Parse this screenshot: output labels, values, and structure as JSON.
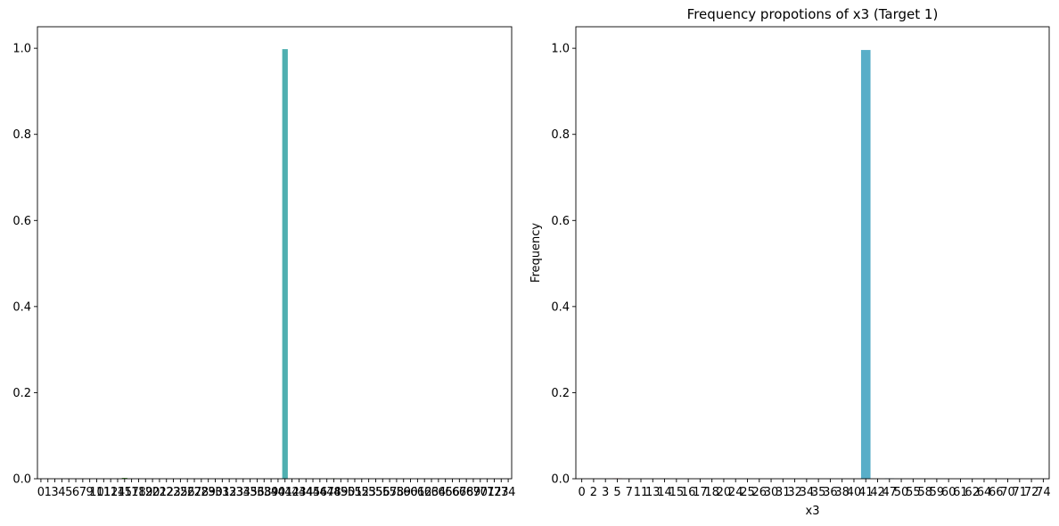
{
  "chart_data": [
    {
      "type": "bar",
      "title": "",
      "xlabel": "",
      "ylabel": "",
      "ylim": [
        0,
        1.05
      ],
      "yticks": [
        0.0,
        0.2,
        0.4,
        0.6,
        0.8,
        1.0
      ],
      "ytick_labels": [
        "0.0",
        "0.2",
        "0.4",
        "0.6",
        "0.8",
        "1.0"
      ],
      "categories": [
        "0",
        "1",
        "3",
        "4",
        "5",
        "6",
        "7",
        "9",
        "10",
        "11",
        "12",
        "14",
        "15",
        "17",
        "18",
        "19",
        "20",
        "21",
        "22",
        "23",
        "25",
        "26",
        "27",
        "28",
        "29",
        "30",
        "31",
        "32",
        "33",
        "34",
        "35",
        "36",
        "38",
        "39",
        "40",
        "41",
        "42",
        "43",
        "44",
        "45",
        "46",
        "47",
        "48",
        "49",
        "50",
        "51",
        "52",
        "53",
        "55",
        "56",
        "57",
        "58",
        "59",
        "60",
        "61",
        "62",
        "63",
        "64",
        "65",
        "66",
        "67",
        "68",
        "69",
        "70",
        "71",
        "72",
        "73",
        "74"
      ],
      "values": [
        0,
        0,
        0,
        0,
        0,
        0,
        0,
        0,
        0,
        0,
        0,
        0,
        0.002,
        0,
        0,
        0,
        0,
        0,
        0,
        0,
        0,
        0,
        0,
        0,
        0,
        0,
        0,
        0,
        0,
        0,
        0,
        0,
        0,
        0,
        0,
        0.998,
        0,
        0,
        0,
        0,
        0,
        0,
        0.001,
        0,
        0,
        0,
        0,
        0,
        0,
        0,
        0,
        0,
        0,
        0,
        0,
        0,
        0,
        0,
        0,
        0,
        0,
        0,
        0,
        0,
        0,
        0,
        0,
        0
      ],
      "grid": false,
      "colors": [
        "#3b75af",
        "#ef8636",
        "#519e3e",
        "#c53a32",
        "#8d69b8",
        "#84584e",
        "#d57dbe",
        "#7f7f7f",
        "#bcbc45",
        "#58bbcc",
        "#3b75af",
        "#ef8636",
        "#519e3e",
        "#c53a32",
        "#8d69b8",
        "#84584e",
        "#d57dbe",
        "#7f7f7f",
        "#bcbc45",
        "#58bbcc",
        "#3b75af",
        "#ef8636",
        "#519e3e",
        "#c53a32",
        "#8d69b8",
        "#84584e",
        "#d57dbe",
        "#7f7f7f",
        "#bcbc45",
        "#58bbcc",
        "#3b75af",
        "#ef8636",
        "#519e3e",
        "#c53a32",
        "#8d69b8",
        "#4fafb0",
        "#d57dbe",
        "#7f7f7f",
        "#bcbc45",
        "#58bbcc",
        "#3b75af",
        "#ef8636",
        "#519e3e",
        "#c53a32",
        "#8d69b8",
        "#84584e",
        "#d57dbe",
        "#7f7f7f",
        "#bcbc45",
        "#58bbcc",
        "#3b75af",
        "#ef8636",
        "#519e3e",
        "#c53a32",
        "#8d69b8",
        "#84584e",
        "#d57dbe",
        "#7f7f7f",
        "#bcbc45",
        "#58bbcc",
        "#3b75af",
        "#ef8636",
        "#519e3e",
        "#c53a32",
        "#8d69b8",
        "#84584e",
        "#d57dbe",
        "#7f7f7f"
      ]
    },
    {
      "type": "bar",
      "title": "Frequency propotions of x3 (Target 1)",
      "xlabel": "x3",
      "ylabel": "Frequency",
      "ylim": [
        0,
        1.05
      ],
      "yticks": [
        0.0,
        0.2,
        0.4,
        0.6,
        0.8,
        1.0
      ],
      "ytick_labels": [
        "0.0",
        "0.2",
        "0.4",
        "0.6",
        "0.8",
        "1.0"
      ],
      "categories": [
        "0",
        "2",
        "3",
        "5",
        "7",
        "11",
        "13",
        "14",
        "15",
        "16",
        "17",
        "18",
        "20",
        "24",
        "25",
        "26",
        "30",
        "31",
        "32",
        "34",
        "35",
        "36",
        "38",
        "40",
        "41",
        "42",
        "47",
        "50",
        "55",
        "58",
        "59",
        "60",
        "61",
        "62",
        "64",
        "66",
        "70",
        "71",
        "72",
        "74"
      ],
      "values": [
        0,
        0,
        0,
        0.001,
        0,
        0,
        0,
        0.001,
        0,
        0,
        0,
        0,
        0,
        0,
        0,
        0,
        0,
        0,
        0,
        0,
        0,
        0,
        0,
        0,
        0.996,
        0,
        0.001,
        0,
        0,
        0,
        0,
        0,
        0,
        0,
        0,
        0,
        0,
        0,
        0,
        0
      ],
      "grid": false,
      "colors": [
        "#3b75af",
        "#ef8636",
        "#519e3e",
        "#c53a32",
        "#8d69b8",
        "#84584e",
        "#d57dbe",
        "#7f7f7f",
        "#bcbc45",
        "#58bbcc",
        "#3b75af",
        "#ef8636",
        "#519e3e",
        "#c53a32",
        "#8d69b8",
        "#84584e",
        "#d57dbe",
        "#7f7f7f",
        "#bcbc45",
        "#58bbcc",
        "#3b75af",
        "#ef8636",
        "#519e3e",
        "#c53a32",
        "#58aec8",
        "#84584e",
        "#3b75af",
        "#7f7f7f",
        "#bcbc45",
        "#58bbcc",
        "#3b75af",
        "#ef8636",
        "#519e3e",
        "#c53a32",
        "#8d69b8",
        "#84584e",
        "#d57dbe",
        "#7f7f7f",
        "#bcbc45",
        "#58bbcc"
      ]
    }
  ]
}
